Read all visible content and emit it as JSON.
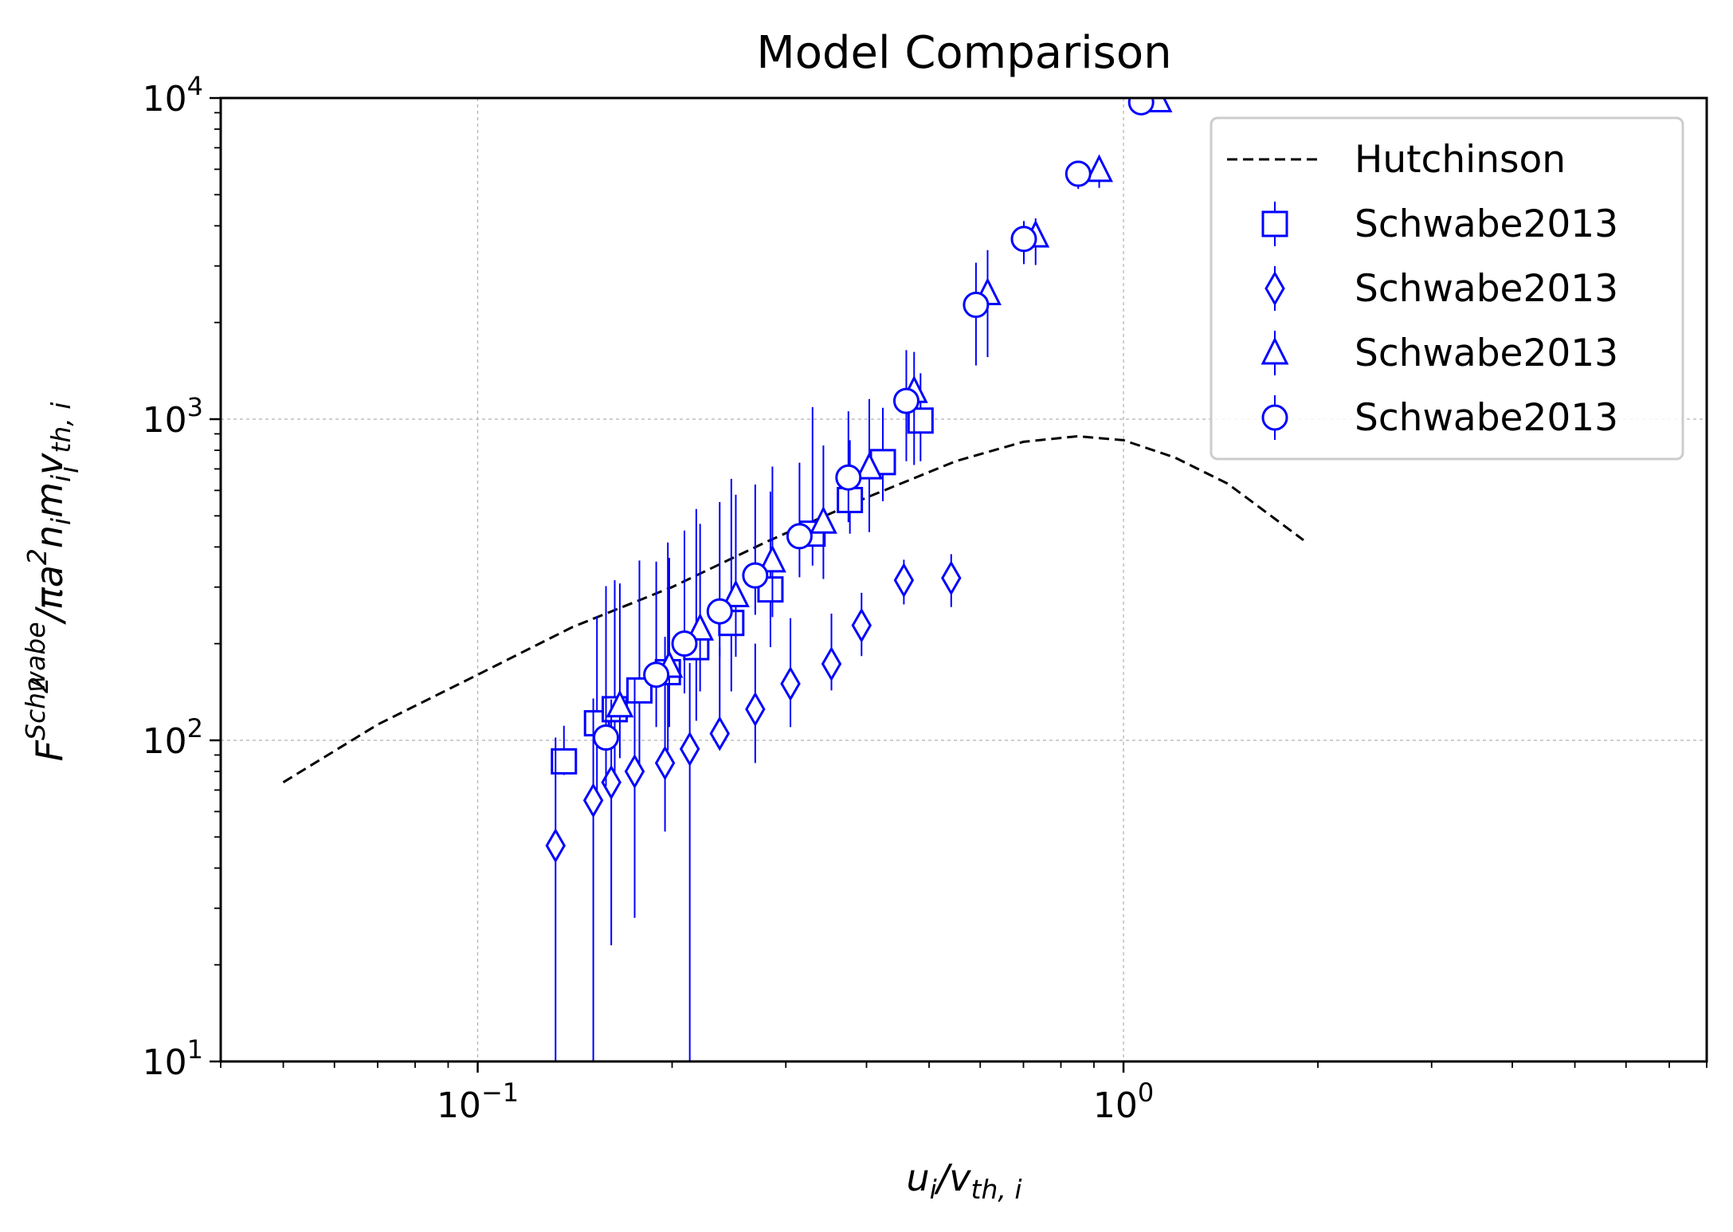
{
  "chart_data": {
    "type": "scatter",
    "title": "Model Comparison",
    "xlabel": {
      "base": "u",
      "sub": "i",
      "slash": "/",
      "base2": "v",
      "sub2": "th, i"
    },
    "ylabel": {
      "F": "F",
      "F_sub": "i",
      "F_sup": "Schwabe",
      "rest": "/πa",
      "sq": "2",
      "rest2": "n",
      "n_sub": "i",
      "m": "m",
      "m_sub": "i",
      "v": "v",
      "v_sup": "2",
      "v_sub": "th, i"
    },
    "x_scale": "log",
    "y_scale": "log",
    "xlim": [
      0.04,
      8.0
    ],
    "ylim": [
      10,
      10000
    ],
    "x_tick_labels": [
      {
        "value": 0.1,
        "base": "10",
        "exp": "−1"
      },
      {
        "value": 1,
        "base": "10",
        "exp": "0"
      }
    ],
    "y_tick_labels": [
      {
        "value": 10,
        "base": "10",
        "exp": "1"
      },
      {
        "value": 100,
        "base": "10",
        "exp": "2"
      },
      {
        "value": 1000,
        "base": "10",
        "exp": "3"
      },
      {
        "value": 10000,
        "base": "10",
        "exp": "4"
      }
    ],
    "grid": true,
    "legend_position": "top-right",
    "colors": {
      "markers": "#0000ff",
      "line": "#000000"
    },
    "series": [
      {
        "name": "Hutchinson",
        "kind": "line",
        "style": "dashed",
        "color": "#000000",
        "x": [
          0.05,
          0.07,
          0.1,
          0.14,
          0.2,
          0.28,
          0.4,
          0.55,
          0.7,
          0.85,
          1.0,
          1.2,
          1.45,
          1.9
        ],
        "y": [
          74,
          112,
          160,
          225,
          300,
          415,
          570,
          740,
          850,
          885,
          860,
          760,
          630,
          420
        ]
      },
      {
        "name": "Schwabe2013",
        "kind": "points",
        "marker": "square",
        "color": "#0000ff",
        "x": [
          0.136,
          0.153,
          0.163,
          0.178,
          0.197,
          0.218,
          0.247,
          0.284,
          0.33,
          0.377,
          0.424,
          0.485
        ],
        "y": [
          86,
          113,
          125,
          143,
          163,
          195,
          232,
          295,
          440,
          560,
          735,
          990
        ],
        "yerr_low": [
          8,
          50,
          50,
          60,
          70,
          80,
          90,
          100,
          90,
          120,
          180,
          250
        ],
        "yerr_high": [
          25,
          130,
          190,
          220,
          250,
          330,
          420,
          300,
          650,
          300,
          350,
          400
        ]
      },
      {
        "name": "Schwabe2013",
        "kind": "points",
        "marker": "diamond",
        "color": "#0000ff",
        "x": [
          0.132,
          0.151,
          0.161,
          0.175,
          0.195,
          0.213,
          0.237,
          0.269,
          0.305,
          0.353,
          0.393,
          0.457,
          0.541
        ],
        "y": [
          47,
          65,
          74,
          80,
          85,
          94,
          105,
          125,
          150,
          173,
          228,
          315,
          320
        ],
        "yerr_low": [
          42,
          55,
          51,
          52,
          33,
          84,
          2,
          40,
          40,
          30,
          45,
          50,
          60
        ],
        "yerr_high": [
          55,
          70,
          60,
          75,
          125,
          80,
          90,
          75,
          90,
          75,
          60,
          50,
          60
        ]
      },
      {
        "name": "Schwabe2013",
        "kind": "points",
        "marker": "triangle",
        "color": "#0000ff",
        "x": [
          0.166,
          0.198,
          0.221,
          0.251,
          0.286,
          0.343,
          0.404,
          0.474,
          0.616,
          0.731,
          0.917,
          1.133
        ],
        "y": [
          128,
          170,
          222,
          282,
          362,
          478,
          705,
          1220,
          2460,
          3720,
          5950,
          9800
        ],
        "yerr_low": [
          40,
          60,
          80,
          100,
          120,
          160,
          260,
          500,
          900,
          700,
          700,
          700
        ],
        "yerr_high": [
          180,
          200,
          250,
          300,
          350,
          350,
          450,
          400,
          900,
          500,
          500,
          500
        ]
      },
      {
        "name": "Schwabe2013",
        "kind": "points",
        "marker": "circle",
        "color": "#0000ff",
        "x": [
          0.158,
          0.189,
          0.209,
          0.237,
          0.269,
          0.315,
          0.375,
          0.461,
          0.591,
          0.701,
          0.851,
          1.065
        ],
        "y": [
          102,
          160,
          200,
          252,
          326,
          432,
          658,
          1140,
          2270,
          3640,
          5810,
          9700
        ],
        "yerr_low": [
          30,
          50,
          60,
          70,
          80,
          110,
          180,
          400,
          800,
          600,
          600,
          600
        ],
        "yerr_high": [
          200,
          200,
          250,
          300,
          300,
          300,
          400,
          500,
          800,
          500,
          500,
          500
        ]
      }
    ]
  }
}
